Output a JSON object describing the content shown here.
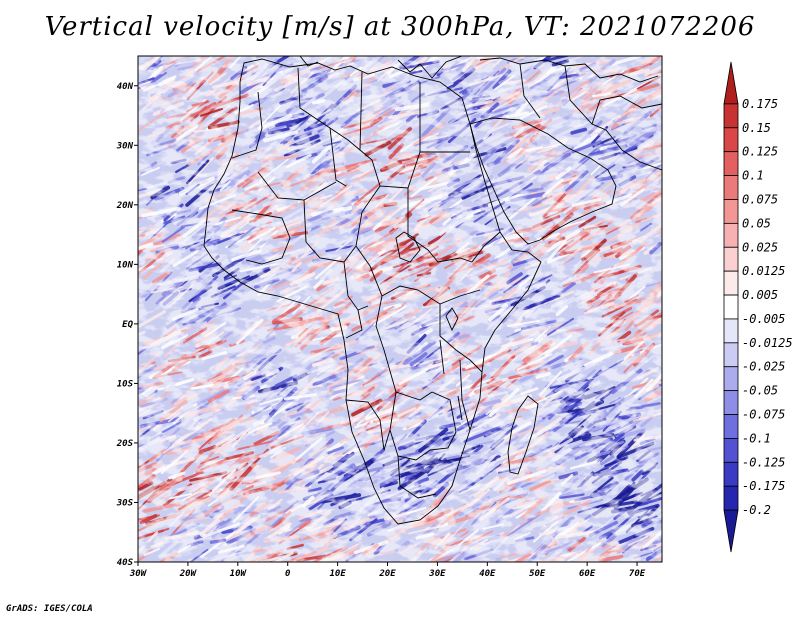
{
  "title": "Vertical velocity [m/s] at 300hPa, VT: 2021072206",
  "credit": "GrADS: IGES/COLA",
  "map": {
    "lon_range": [
      -30,
      75
    ],
    "lat_range": [
      -40,
      45
    ],
    "x_ticks": [
      "30W",
      "20W",
      "10W",
      "0",
      "10E",
      "20E",
      "30E",
      "40E",
      "50E",
      "60E",
      "70E"
    ],
    "x_tick_values": [
      -30,
      -20,
      -10,
      0,
      10,
      20,
      30,
      40,
      50,
      60,
      70
    ],
    "y_ticks": [
      "40N",
      "30N",
      "20N",
      "10N",
      "EQ",
      "10S",
      "20S",
      "30S",
      "40S"
    ],
    "y_tick_values": [
      40,
      30,
      20,
      10,
      0,
      -10,
      -20,
      -30,
      -40
    ]
  },
  "colorbar": {
    "labels": [
      "0.175",
      "0.15",
      "0.125",
      "0.1",
      "0.075",
      "0.05",
      "0.025",
      "0.0125",
      "0.005",
      "-0.005",
      "-0.0125",
      "-0.025",
      "-0.05",
      "-0.075",
      "-0.1",
      "-0.125",
      "-0.175",
      "-0.2"
    ],
    "colors": [
      "#b01e1e",
      "#c83232",
      "#d94747",
      "#e45f5f",
      "#ec7a7a",
      "#f29696",
      "#f6b2b2",
      "#fad0d0",
      "#fdebeb",
      "#ffffff",
      "#e6e6fb",
      "#cbcbf4",
      "#ababed",
      "#8e8ee6",
      "#6f6fde",
      "#5252d2",
      "#3a3ac4",
      "#2626b0",
      "#1a1a96"
    ]
  },
  "colors": {
    "ocean_base": "#c9cdf0",
    "land_base": "#b9bcee",
    "positive": "#e8838a",
    "negative": "#6e6ee0",
    "border": "#000000"
  }
}
